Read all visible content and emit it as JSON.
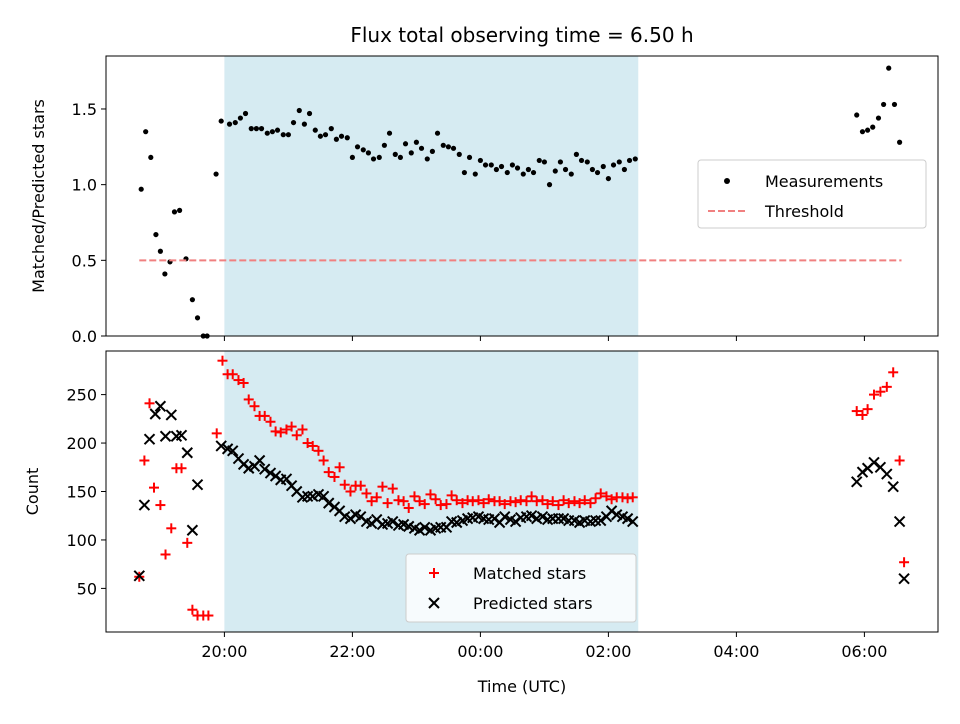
{
  "chart_data": [
    {
      "type": "scatter",
      "panel": "top",
      "title": "Flux total observing time = 6.50 h",
      "ylabel": "Matched/Predicted stars",
      "ylim": [
        0,
        1.85
      ],
      "yticks": [
        "0.0",
        "0.5",
        "1.0",
        "1.5"
      ],
      "shaded_interval": [
        "20:00",
        "02:28"
      ],
      "shade_color": "#add8e6",
      "legend_position": "center-right",
      "series": [
        {
          "name": "Measurements",
          "color": "#000000",
          "marker": "dot",
          "x": [
            -1.3,
            -1.23,
            -1.15,
            -1.07,
            -1.0,
            -0.93,
            -0.85,
            -0.78,
            -0.7,
            -0.6,
            -0.5,
            -0.42,
            -0.33,
            -0.27,
            -0.13,
            -0.05,
            0.08,
            0.17,
            0.25,
            0.33,
            0.42,
            0.5,
            0.58,
            0.67,
            0.75,
            0.83,
            0.92,
            1.0,
            1.08,
            1.17,
            1.25,
            1.33,
            1.42,
            1.5,
            1.58,
            1.67,
            1.75,
            1.83,
            1.92,
            2.0,
            2.08,
            2.17,
            2.25,
            2.33,
            2.42,
            2.5,
            2.58,
            2.67,
            2.75,
            2.83,
            2.92,
            3.0,
            3.08,
            3.17,
            3.25,
            3.33,
            3.42,
            3.5,
            3.58,
            3.67,
            3.75,
            3.83,
            3.92,
            4.0,
            4.08,
            4.17,
            4.25,
            4.33,
            4.42,
            4.5,
            4.58,
            4.67,
            4.75,
            4.83,
            4.92,
            5.0,
            5.08,
            5.17,
            5.25,
            5.33,
            5.42,
            5.5,
            5.58,
            5.67,
            5.75,
            5.83,
            5.92,
            6.0,
            6.08,
            6.17,
            6.25,
            6.33,
            6.42,
            9.88,
            9.97,
            10.05,
            10.13,
            10.22,
            10.3,
            10.38,
            10.47,
            10.55
          ],
          "y": [
            0.97,
            1.35,
            1.18,
            0.67,
            0.56,
            0.41,
            0.49,
            0.82,
            0.83,
            0.51,
            0.24,
            0.12,
            0.0,
            0.0,
            1.07,
            1.42,
            1.4,
            1.41,
            1.44,
            1.47,
            1.37,
            1.37,
            1.37,
            1.34,
            1.35,
            1.36,
            1.33,
            1.33,
            1.41,
            1.49,
            1.4,
            1.47,
            1.36,
            1.32,
            1.33,
            1.37,
            1.3,
            1.32,
            1.31,
            1.18,
            1.25,
            1.23,
            1.21,
            1.17,
            1.18,
            1.26,
            1.34,
            1.2,
            1.18,
            1.27,
            1.21,
            1.28,
            1.24,
            1.17,
            1.22,
            1.34,
            1.26,
            1.25,
            1.24,
            1.2,
            1.08,
            1.18,
            1.07,
            1.16,
            1.13,
            1.13,
            1.1,
            1.12,
            1.08,
            1.13,
            1.11,
            1.07,
            1.1,
            1.08,
            1.16,
            1.15,
            1.0,
            1.09,
            1.15,
            1.1,
            1.07,
            1.2,
            1.16,
            1.15,
            1.1,
            1.08,
            1.12,
            1.04,
            1.13,
            1.15,
            1.1,
            1.16,
            1.17,
            1.46,
            1.35,
            1.36,
            1.38,
            1.44,
            1.53,
            1.77,
            1.53,
            1.28
          ]
        },
        {
          "name": "Threshold",
          "color": "#f08080",
          "style": "dashed",
          "x": [
            -1.33,
            10.58
          ],
          "y": [
            0.5,
            0.5
          ]
        }
      ]
    },
    {
      "type": "scatter",
      "panel": "bottom",
      "xlabel": "Time (UTC)",
      "ylabel": "Count",
      "xlim": [
        -1.85,
        11.15
      ],
      "ylim": [
        5,
        295
      ],
      "xticks": [
        "20:00",
        "22:00",
        "00:00",
        "02:00",
        "04:00",
        "06:00"
      ],
      "yticks": [
        "50",
        "100",
        "150",
        "200",
        "250"
      ],
      "shaded_interval": [
        "20:00",
        "02:28"
      ],
      "shade_color": "#add8e6",
      "legend_position": "lower-center",
      "series": [
        {
          "name": "Matched stars",
          "color": "#ff0000",
          "marker": "plus",
          "x": [
            -1.33,
            -1.25,
            -1.17,
            -1.1,
            -1.0,
            -0.92,
            -0.83,
            -0.75,
            -0.67,
            -0.58,
            -0.5,
            -0.42,
            -0.33,
            -0.25,
            -0.12,
            -0.03,
            0.05,
            0.13,
            0.22,
            0.3,
            0.38,
            0.47,
            0.55,
            0.63,
            0.72,
            0.8,
            0.88,
            0.97,
            1.05,
            1.13,
            1.22,
            1.3,
            1.38,
            1.47,
            1.55,
            1.63,
            1.72,
            1.8,
            1.88,
            1.97,
            2.05,
            2.13,
            2.22,
            2.3,
            2.38,
            2.47,
            2.55,
            2.63,
            2.72,
            2.8,
            2.88,
            2.97,
            3.05,
            3.13,
            3.22,
            3.3,
            3.38,
            3.47,
            3.55,
            3.63,
            3.72,
            3.8,
            3.88,
            3.97,
            4.05,
            4.13,
            4.22,
            4.3,
            4.38,
            4.47,
            4.55,
            4.63,
            4.72,
            4.8,
            4.88,
            4.97,
            5.05,
            5.13,
            5.22,
            5.3,
            5.38,
            5.47,
            5.55,
            5.63,
            5.72,
            5.8,
            5.88,
            5.97,
            6.05,
            6.13,
            6.22,
            6.3,
            6.38,
            9.88,
            9.97,
            10.05,
            10.15,
            10.25,
            10.35,
            10.45,
            10.55,
            10.62
          ],
          "y": [
            62,
            182,
            241,
            154,
            136,
            85,
            112,
            174,
            174,
            97,
            28,
            22,
            22,
            22,
            210,
            285,
            271,
            271,
            265,
            262,
            245,
            238,
            228,
            228,
            222,
            212,
            211,
            214,
            217,
            208,
            214,
            200,
            197,
            192,
            182,
            170,
            165,
            175,
            157,
            150,
            156,
            156,
            148,
            140,
            144,
            155,
            138,
            153,
            141,
            140,
            133,
            145,
            140,
            137,
            147,
            142,
            136,
            137,
            146,
            141,
            138,
            141,
            140,
            141,
            138,
            142,
            140,
            140,
            137,
            140,
            139,
            141,
            140,
            145,
            140,
            141,
            137,
            140,
            136,
            141,
            138,
            140,
            138,
            141,
            138,
            143,
            148,
            145,
            142,
            144,
            144,
            143,
            144,
            233,
            229,
            235,
            250,
            253,
            258,
            273,
            182,
            77
          ],
          "note": ""
        },
        {
          "name": "Predicted stars",
          "color": "#000000",
          "marker": "cross",
          "x": [
            -1.33,
            -1.25,
            -1.17,
            -1.08,
            -1.0,
            -0.92,
            -0.83,
            -0.75,
            -0.67,
            -0.58,
            -0.5,
            -0.42,
            -0.05,
            0.05,
            0.13,
            0.22,
            0.3,
            0.38,
            0.47,
            0.55,
            0.63,
            0.72,
            0.8,
            0.88,
            0.97,
            1.05,
            1.13,
            1.22,
            1.3,
            1.38,
            1.47,
            1.55,
            1.63,
            1.72,
            1.8,
            1.88,
            1.97,
            2.05,
            2.13,
            2.22,
            2.3,
            2.38,
            2.47,
            2.55,
            2.63,
            2.72,
            2.8,
            2.88,
            2.97,
            3.05,
            3.13,
            3.22,
            3.3,
            3.38,
            3.47,
            3.55,
            3.63,
            3.72,
            3.8,
            3.88,
            3.97,
            4.05,
            4.13,
            4.22,
            4.3,
            4.38,
            4.47,
            4.55,
            4.63,
            4.72,
            4.8,
            4.88,
            4.97,
            5.05,
            5.13,
            5.22,
            5.3,
            5.38,
            5.47,
            5.55,
            5.63,
            5.72,
            5.8,
            5.88,
            5.97,
            6.05,
            6.13,
            6.22,
            6.3,
            6.38,
            9.88,
            9.97,
            10.05,
            10.15,
            10.25,
            10.35,
            10.45,
            10.55,
            10.62
          ],
          "y": [
            63,
            136,
            204,
            230,
            238,
            207,
            229,
            207,
            208,
            190,
            110,
            157,
            197,
            194,
            192,
            184,
            178,
            174,
            176,
            182,
            173,
            169,
            166,
            162,
            163,
            156,
            150,
            144,
            145,
            145,
            147,
            145,
            138,
            134,
            130,
            124,
            122,
            126,
            124,
            119,
            117,
            121,
            116,
            117,
            119,
            115,
            116,
            114,
            112,
            110,
            113,
            110,
            112,
            113,
            113,
            119,
            118,
            120,
            122,
            123,
            124,
            122,
            121,
            122,
            118,
            124,
            121,
            119,
            123,
            124,
            125,
            122,
            124,
            121,
            122,
            122,
            122,
            120,
            120,
            118,
            120,
            119,
            120,
            120,
            124,
            130,
            126,
            124,
            122,
            119,
            160,
            170,
            174,
            180,
            175,
            168,
            155,
            119,
            60
          ]
        }
      ]
    }
  ]
}
